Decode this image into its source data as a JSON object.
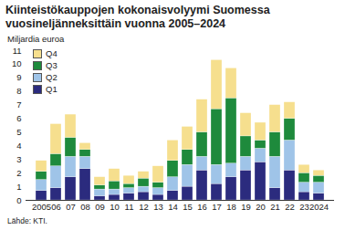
{
  "chart_data": {
    "type": "bar",
    "stacked": true,
    "title": "Kiinteistökauppojen kokonaisvolyymi Suomessa vuosineljänneksittäin vuonna 2005–2024",
    "y_label": "Miljardia euroa",
    "source": "Lähde: KTI.",
    "categories": [
      "2005",
      "06",
      "07",
      "08",
      "09",
      "10",
      "11",
      "12",
      "13",
      "14",
      "15",
      "16",
      "17",
      "18",
      "19",
      "20",
      "21",
      "22",
      "23",
      "2024"
    ],
    "series": [
      {
        "name": "Q1",
        "color": "#2b2b7e",
        "values": [
          0.7,
          0.9,
          1.7,
          2.3,
          0.3,
          0.4,
          0.5,
          0.6,
          0.4,
          0.7,
          1.0,
          2.2,
          1.2,
          1.7,
          2.2,
          2.8,
          0.9,
          2.2,
          0.6,
          0.5
        ]
      },
      {
        "name": "Q2",
        "color": "#9fc4e8",
        "values": [
          0.8,
          1.6,
          1.5,
          0.9,
          0.5,
          0.4,
          0.4,
          0.4,
          0.5,
          1.0,
          1.6,
          1.0,
          1.4,
          1.0,
          1.0,
          1.0,
          2.3,
          2.2,
          0.7,
          0.8
        ]
      },
      {
        "name": "Q3",
        "color": "#1e8a3c",
        "values": [
          0.6,
          0.9,
          1.4,
          0.5,
          0.3,
          0.6,
          0.3,
          0.6,
          0.4,
          1.2,
          1.1,
          1.8,
          4.1,
          4.8,
          1.5,
          0.6,
          1.8,
          1.6,
          0.7,
          0.5
        ]
      },
      {
        "name": "Q4",
        "color": "#f6df8e",
        "values": [
          0.8,
          2.2,
          1.7,
          0.5,
          0.6,
          0.9,
          0.6,
          0.5,
          1.2,
          1.5,
          1.7,
          2.4,
          3.6,
          2.2,
          1.7,
          1.3,
          2.0,
          1.2,
          0.6,
          0.4
        ]
      }
    ],
    "ylim": [
      0,
      11
    ],
    "yticks": [
      0,
      1,
      2,
      3,
      4,
      5,
      6,
      7,
      8,
      9,
      10,
      11
    ],
    "grid": false,
    "legend": "top-left"
  }
}
